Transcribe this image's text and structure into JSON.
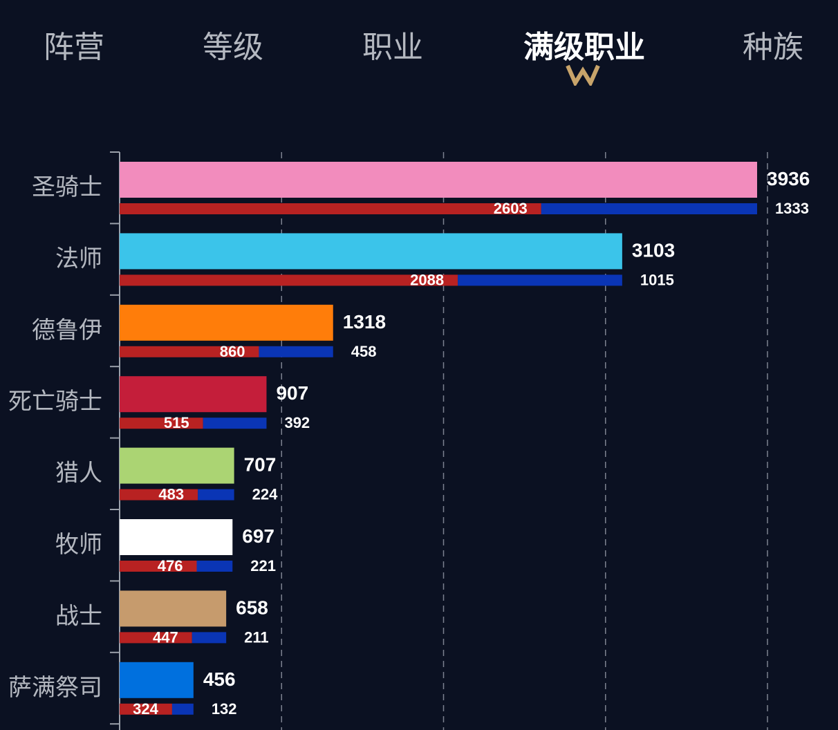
{
  "tabs": [
    {
      "label": "阵营",
      "active": false
    },
    {
      "label": "等级",
      "active": false
    },
    {
      "label": "职业",
      "active": false
    },
    {
      "label": "满级职业",
      "active": true
    },
    {
      "label": "种族",
      "active": false
    }
  ],
  "accent_color": "#c8a46a",
  "chart_data": {
    "type": "bar",
    "orientation": "horizontal",
    "title": "",
    "xlabel": "",
    "ylabel": "",
    "xlim": [
      0,
      4000
    ],
    "grid": "vertical dashed",
    "categories": [
      "圣骑士",
      "法师",
      "德鲁伊",
      "死亡骑士",
      "猎人",
      "牧师",
      "战士",
      "萨满祭司"
    ],
    "totals": [
      3936,
      3103,
      1318,
      907,
      707,
      697,
      658,
      456
    ],
    "total_colors": [
      "#f28cbd",
      "#3bc4ea",
      "#ff7d0a",
      "#c41e3a",
      "#abd473",
      "#ffffff",
      "#c69b6d",
      "#0070de"
    ],
    "series": [
      {
        "values": [
          2603,
          2088,
          860,
          515,
          483,
          476,
          447,
          324
        ],
        "color": "#b82222"
      },
      {
        "values": [
          1333,
          1015,
          458,
          392,
          224,
          221,
          211,
          132
        ],
        "color": "#0a35b5"
      }
    ]
  }
}
